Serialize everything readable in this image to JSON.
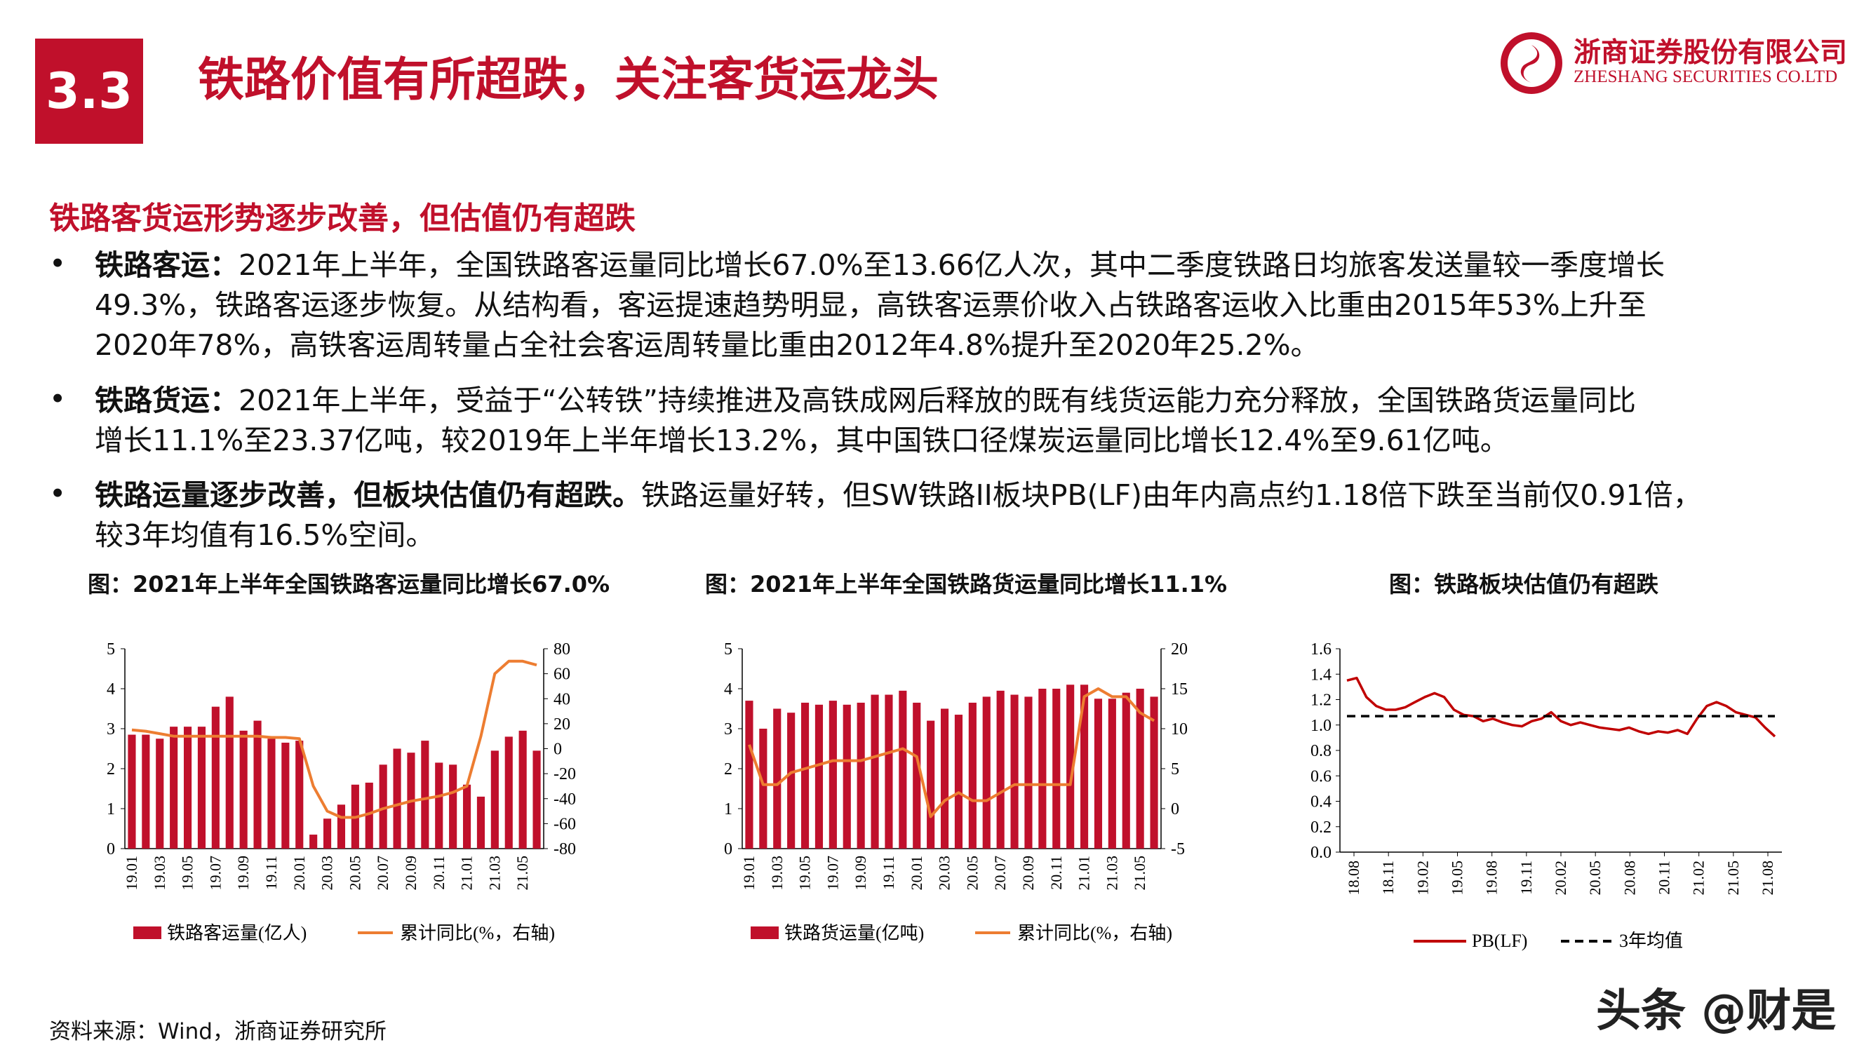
{
  "header": {
    "section_number": "3.3",
    "title": "铁路价值有所超跌，关注客货运龙头",
    "logo_cn": "浙商证券股份有限公司",
    "logo_en": "ZHESHANG SECURITIES CO.LTD"
  },
  "subheading": "铁路客货运形势逐步改善，但估值仍有超跌",
  "bullets": [
    {
      "label": "铁路客运：",
      "line1": "2021年上半年，全国铁路客运量同比增长67.0%至13.66亿人次，其中二季度铁路日均旅客发送量较一季度增长",
      "line2": "49.3%，铁路客运逐步恢复。从结构看，客运提速趋势明显，高铁客运票价收入占铁路客运收入比重由2015年53%上升至",
      "line3": "2020年78%，高铁客运周转量占全社会客运周转量比重由2012年4.8%提升至2020年25.2%。"
    },
    {
      "label": "铁路货运：",
      "line1": "2021年上半年，受益于“公转铁”持续推进及高铁成网后释放的既有线货运能力充分释放，全国铁路货运量同比",
      "line2": "增长11.1%至23.37亿吨，较2019年上半年增长13.2%，其中国铁口径煤炭运量同比增长12.4%至9.61亿吨。"
    },
    {
      "label": "铁路运量逐步改善，但板块估值仍有超跌。",
      "line1": "铁路运量好转，但SW铁路II板块PB(LF)由年内高点约1.18倍下跌至当前仅0.91倍，",
      "line2": "较3年均值有16.5%空间。"
    }
  ],
  "source": "资料来源：Wind，浙商证券研究所",
  "watermark": "头条 @财是",
  "colors": {
    "accent": "#c0102b",
    "bar": "#c0102b",
    "line_orange": "#ed7d31",
    "pb_line": "#c00000",
    "avg_line": "#000000"
  },
  "chart_data": [
    {
      "type": "bar",
      "title": "图：2021年上半年全国铁路客运量同比增长67.0%",
      "categories": [
        "19.01",
        "19.02",
        "19.03",
        "19.04",
        "19.05",
        "19.06",
        "19.07",
        "19.08",
        "19.09",
        "19.10",
        "19.11",
        "19.12",
        "20.01",
        "20.02",
        "20.03",
        "20.04",
        "20.05",
        "20.06",
        "20.07",
        "20.08",
        "20.09",
        "20.10",
        "20.11",
        "20.12",
        "21.01",
        "21.02",
        "21.03",
        "21.04",
        "21.05",
        "21.06"
      ],
      "x_tick_labels": [
        "19.01",
        "19.03",
        "19.05",
        "19.07",
        "19.09",
        "19.11",
        "20.01",
        "20.03",
        "20.05",
        "20.07",
        "20.09",
        "20.11",
        "21.01",
        "21.03",
        "21.05"
      ],
      "series": [
        {
          "name": "铁路客运量(亿人)",
          "axis": "left",
          "type": "bar",
          "values": [
            2.85,
            2.85,
            2.75,
            3.05,
            3.05,
            3.05,
            3.55,
            3.8,
            2.95,
            3.2,
            2.75,
            2.65,
            2.7,
            0.35,
            0.75,
            1.1,
            1.6,
            1.65,
            2.1,
            2.5,
            2.4,
            2.7,
            2.15,
            2.1,
            1.6,
            1.3,
            2.45,
            2.8,
            2.95,
            2.45
          ]
        },
        {
          "name": "累计同比(%，右轴)",
          "axis": "right",
          "type": "line",
          "values": [
            15,
            14,
            12,
            10,
            10,
            10,
            10,
            10,
            10,
            10,
            9,
            9,
            8,
            -30,
            -50,
            -55,
            -55,
            -52,
            -48,
            -45,
            -42,
            -40,
            -38,
            -35,
            -30,
            10,
            60,
            70,
            70,
            67
          ]
        }
      ],
      "y_left": {
        "ylim": [
          0,
          5
        ],
        "ticks": [
          "0",
          "1",
          "2",
          "3",
          "4",
          "5"
        ]
      },
      "y_right": {
        "ylim": [
          -80,
          80
        ],
        "ticks": [
          "-80",
          "-60",
          "-40",
          "-20",
          "0",
          "20",
          "40",
          "60",
          "80"
        ]
      },
      "legend_position": "bottom"
    },
    {
      "type": "bar",
      "title": "图：2021年上半年全国铁路货运量同比增长11.1%",
      "categories": [
        "19.01",
        "19.02",
        "19.03",
        "19.04",
        "19.05",
        "19.06",
        "19.07",
        "19.08",
        "19.09",
        "19.10",
        "19.11",
        "19.12",
        "20.01",
        "20.02",
        "20.03",
        "20.04",
        "20.05",
        "20.06",
        "20.07",
        "20.08",
        "20.09",
        "20.10",
        "20.11",
        "20.12",
        "21.01",
        "21.02",
        "21.03",
        "21.04",
        "21.05",
        "21.06"
      ],
      "x_tick_labels": [
        "19.01",
        "19.03",
        "19.05",
        "19.07",
        "19.09",
        "19.11",
        "20.01",
        "20.03",
        "20.05",
        "20.07",
        "20.09",
        "20.11",
        "21.01",
        "21.03",
        "21.05"
      ],
      "series": [
        {
          "name": "铁路货运量(亿吨)",
          "axis": "left",
          "type": "bar",
          "values": [
            3.7,
            3.0,
            3.5,
            3.4,
            3.65,
            3.6,
            3.7,
            3.6,
            3.65,
            3.85,
            3.85,
            3.95,
            3.65,
            3.2,
            3.5,
            3.35,
            3.65,
            3.8,
            3.95,
            3.85,
            3.8,
            4.0,
            4.0,
            4.1,
            4.1,
            3.75,
            3.75,
            3.9,
            4.0,
            3.8
          ]
        },
        {
          "name": "累计同比(%，右轴)",
          "axis": "right",
          "type": "line",
          "values": [
            8,
            3,
            3,
            4.5,
            5,
            5.5,
            6,
            6,
            6,
            6.5,
            7,
            7.5,
            6.5,
            -1,
            1,
            2,
            1,
            1,
            2,
            3,
            3,
            3,
            3,
            3,
            14,
            15,
            14,
            14,
            12,
            11
          ]
        }
      ],
      "y_left": {
        "ylim": [
          0,
          5
        ],
        "ticks": [
          "0",
          "1",
          "2",
          "3",
          "4",
          "5"
        ]
      },
      "y_right": {
        "ylim": [
          -5,
          20
        ],
        "ticks": [
          "-5",
          "0",
          "5",
          "10",
          "15",
          "20"
        ]
      },
      "legend_position": "bottom"
    },
    {
      "type": "line",
      "title": "图：铁路板块估值仍有超跌",
      "x_tick_labels": [
        "18.08",
        "18.11",
        "19.02",
        "19.05",
        "19.08",
        "19.11",
        "20.02",
        "20.05",
        "20.08",
        "20.11",
        "21.02",
        "21.05",
        "21.08"
      ],
      "series": [
        {
          "name": "PB(LF)",
          "style": "solid",
          "values": [
            1.35,
            1.37,
            1.22,
            1.15,
            1.12,
            1.12,
            1.14,
            1.18,
            1.22,
            1.25,
            1.22,
            1.12,
            1.08,
            1.07,
            1.03,
            1.05,
            1.02,
            1.0,
            0.99,
            1.03,
            1.05,
            1.1,
            1.03,
            1.0,
            1.02,
            1.0,
            0.98,
            0.97,
            0.96,
            0.98,
            0.95,
            0.93,
            0.95,
            0.94,
            0.96,
            0.93,
            1.05,
            1.15,
            1.18,
            1.15,
            1.1,
            1.08,
            1.06,
            0.98,
            0.91
          ]
        },
        {
          "name": "3年均值",
          "style": "dashed",
          "values": [
            1.07
          ]
        }
      ],
      "ylim": [
        0,
        1.6
      ],
      "y_ticks": [
        "0.0",
        "0.2",
        "0.4",
        "0.6",
        "0.8",
        "1.0",
        "1.2",
        "1.4",
        "1.6"
      ],
      "legend_position": "bottom"
    }
  ]
}
